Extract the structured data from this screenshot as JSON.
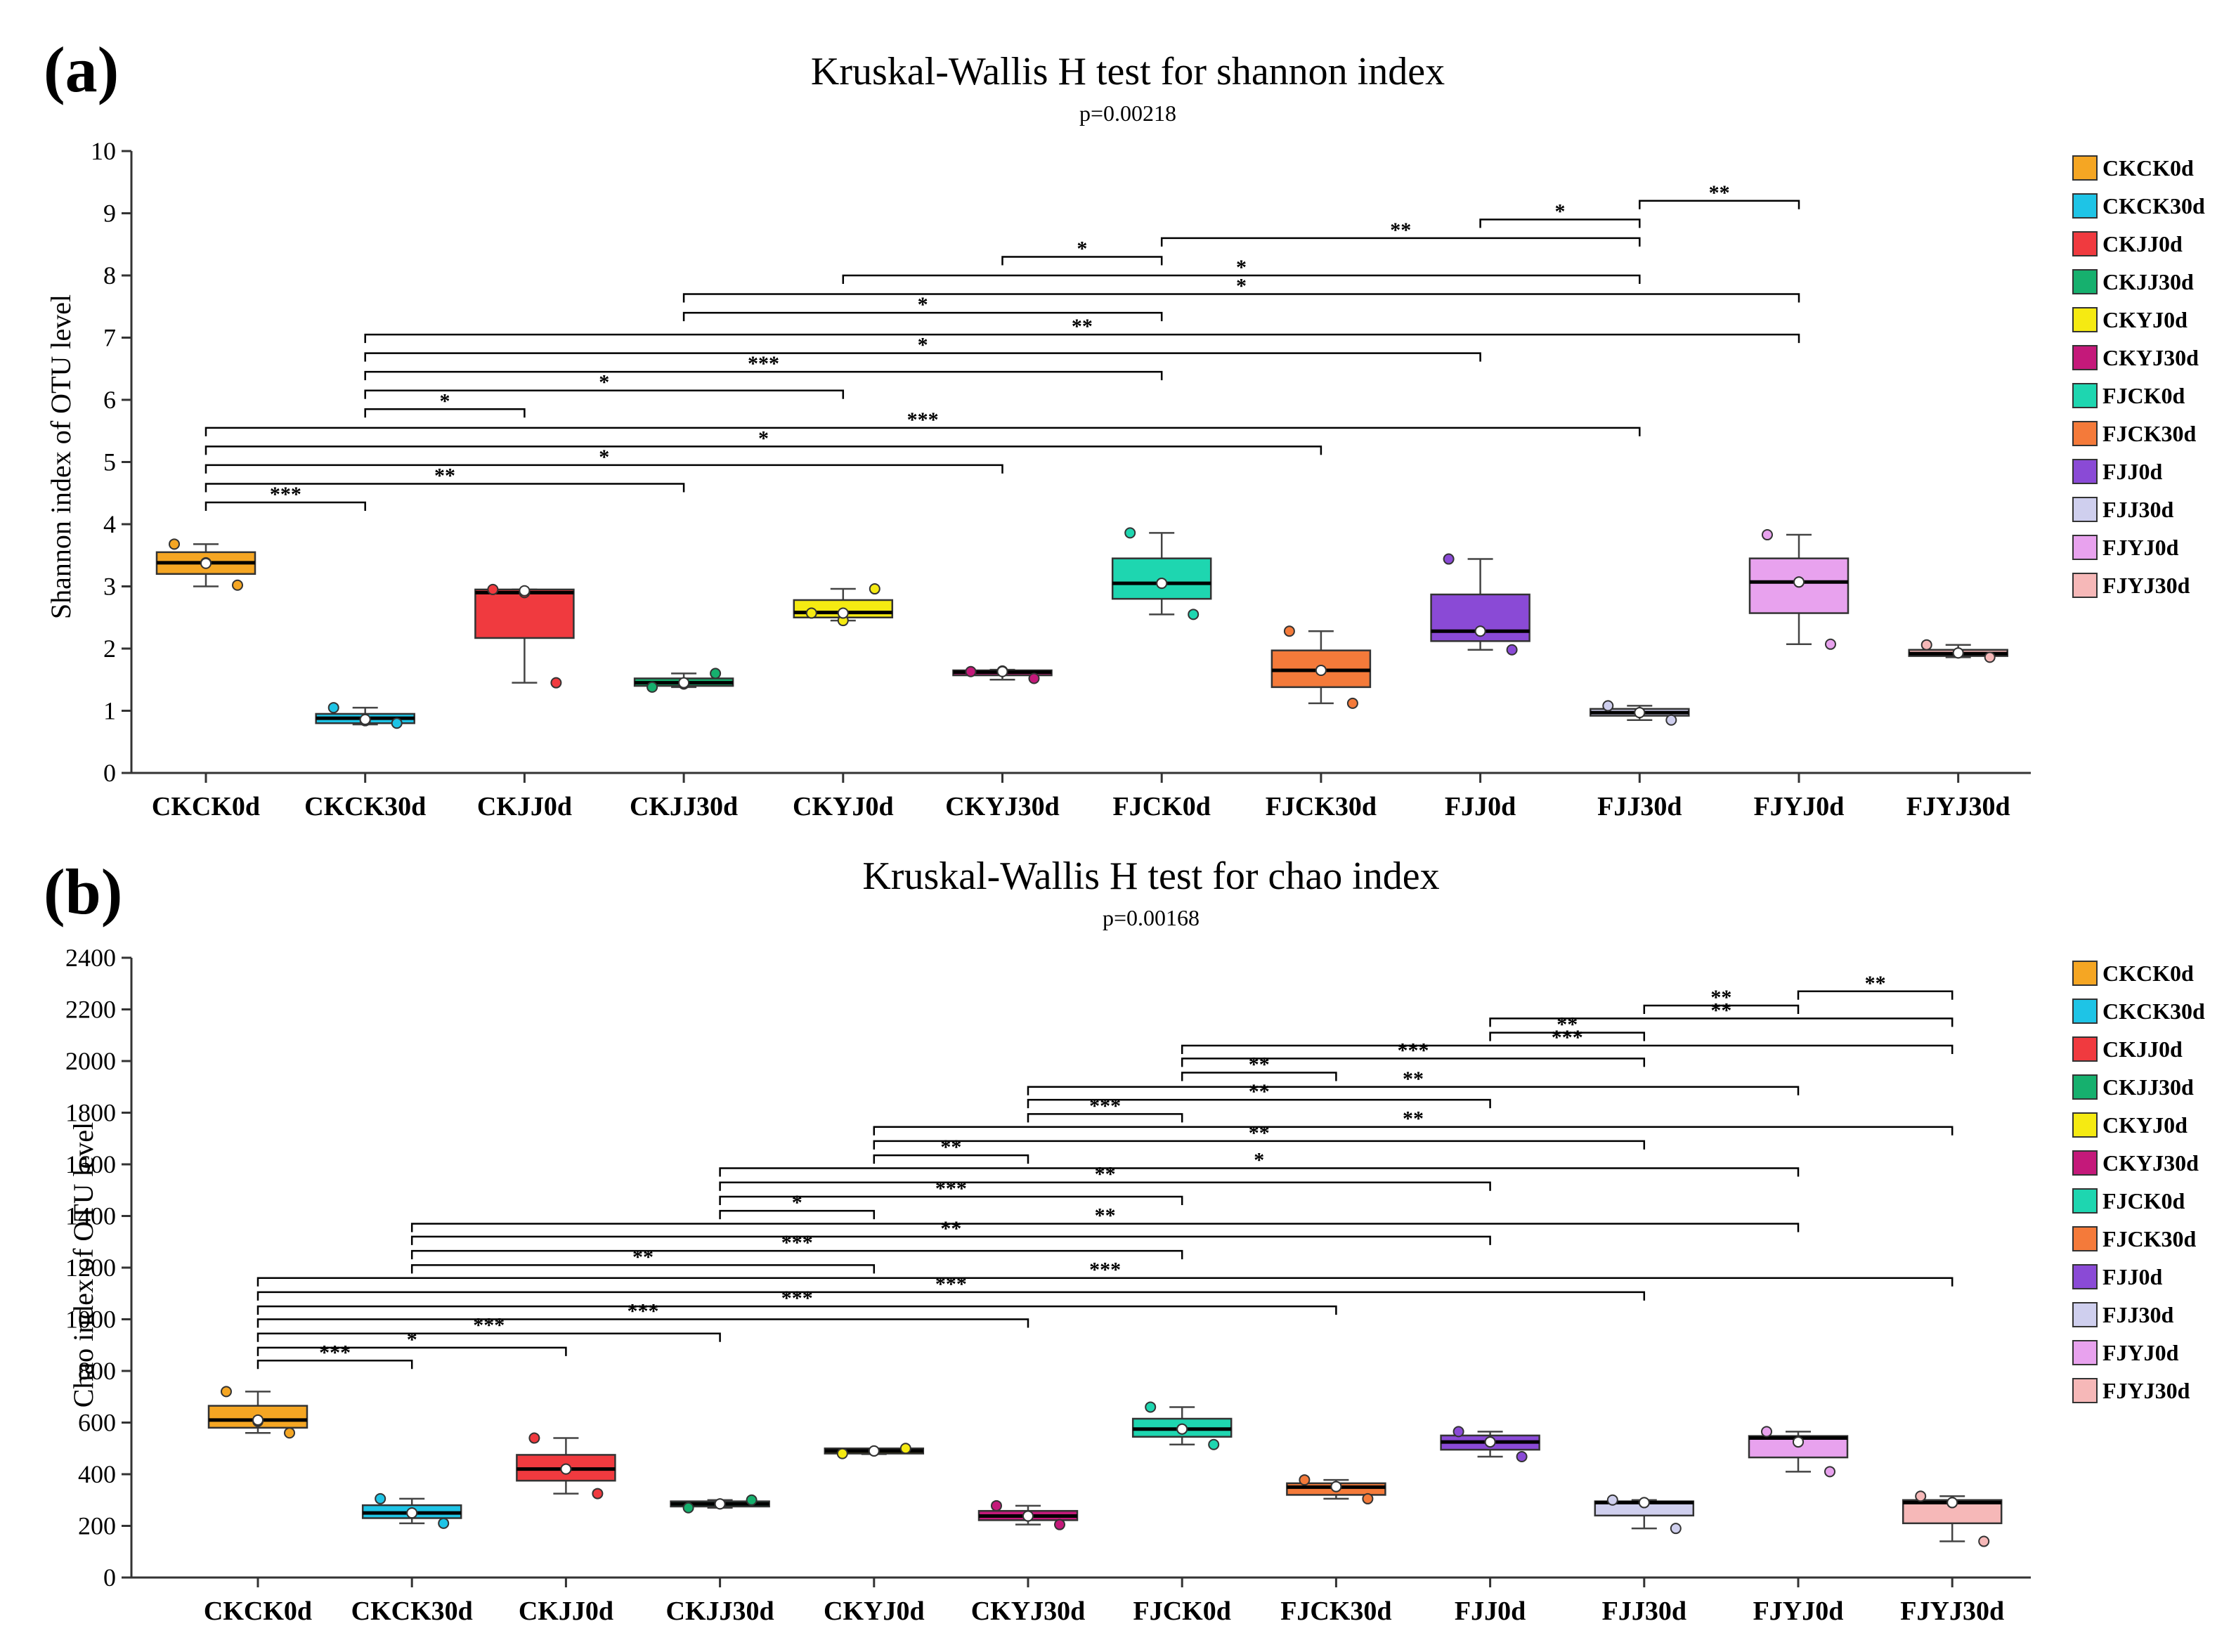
{
  "chart_data": [
    {
      "type": "box",
      "panel_label": "(a)",
      "title": "Kruskal-Wallis H test for shannon index",
      "p_value": "p=0.00218",
      "ylabel": "Shannon index of OTU level",
      "ylim": [
        0,
        10
      ],
      "yticks": [
        "0",
        "1",
        "2",
        "3",
        "4",
        "5",
        "6",
        "7",
        "8",
        "9",
        "10"
      ],
      "categories": [
        "CKCK0d",
        "CKCK30d",
        "CKJJ0d",
        "CKJJ30d",
        "CKYJ0d",
        "CKYJ30d",
        "FJCK0d",
        "FJCK30d",
        "FJJ0d",
        "FJJ30d",
        "FJYJ0d",
        "FJYJ30d"
      ],
      "boxes": [
        {
          "q1": 3.2,
          "median": 3.38,
          "q3": 3.55,
          "wlo": 3.0,
          "whi": 3.68,
          "mean": 3.37,
          "points": [
            3.68,
            3.38,
            3.02
          ]
        },
        {
          "q1": 0.8,
          "median": 0.88,
          "q3": 0.95,
          "wlo": 0.78,
          "whi": 1.05,
          "mean": 0.86,
          "points": [
            1.05,
            0.84,
            0.8
          ]
        },
        {
          "q1": 2.17,
          "median": 2.9,
          "q3": 2.95,
          "wlo": 1.45,
          "whi": 2.95,
          "mean": 2.93,
          "points": [
            2.95,
            2.9,
            1.45
          ]
        },
        {
          "q1": 1.4,
          "median": 1.45,
          "q3": 1.52,
          "wlo": 1.38,
          "whi": 1.6,
          "mean": 1.45,
          "points": [
            1.38,
            1.43,
            1.6
          ]
        },
        {
          "q1": 2.5,
          "median": 2.58,
          "q3": 2.78,
          "wlo": 2.45,
          "whi": 2.96,
          "mean": 2.57,
          "points": [
            2.57,
            2.45,
            2.96
          ]
        },
        {
          "q1": 1.57,
          "median": 1.62,
          "q3": 1.65,
          "wlo": 1.5,
          "whi": 1.66,
          "mean": 1.63,
          "points": [
            1.63,
            1.64,
            1.52
          ]
        },
        {
          "q1": 2.8,
          "median": 3.05,
          "q3": 3.45,
          "wlo": 2.55,
          "whi": 3.86,
          "mean": 3.05,
          "points": [
            3.86,
            3.05,
            2.55
          ]
        },
        {
          "q1": 1.38,
          "median": 1.65,
          "q3": 1.97,
          "wlo": 1.12,
          "whi": 2.28,
          "mean": 1.65,
          "points": [
            2.28,
            1.65,
            1.12
          ]
        },
        {
          "q1": 2.12,
          "median": 2.28,
          "q3": 2.87,
          "wlo": 1.98,
          "whi": 3.44,
          "mean": 2.28,
          "points": [
            3.44,
            2.28,
            1.98
          ]
        },
        {
          "q1": 0.92,
          "median": 0.97,
          "q3": 1.03,
          "wlo": 0.85,
          "whi": 1.08,
          "mean": 0.97,
          "points": [
            1.08,
            0.97,
            0.85
          ]
        },
        {
          "q1": 2.57,
          "median": 3.07,
          "q3": 3.45,
          "wlo": 2.07,
          "whi": 3.83,
          "mean": 3.07,
          "points": [
            3.83,
            3.07,
            2.07
          ]
        },
        {
          "q1": 1.88,
          "median": 1.92,
          "q3": 1.98,
          "wlo": 1.86,
          "whi": 2.06,
          "mean": 1.93,
          "points": [
            2.06,
            1.93,
            1.86
          ]
        }
      ],
      "comparisons": [
        {
          "from": 0,
          "to": 1,
          "y": 4.35,
          "sig": "***"
        },
        {
          "from": 0,
          "to": 3,
          "y": 4.65,
          "sig": "**"
        },
        {
          "from": 0,
          "to": 5,
          "y": 4.95,
          "sig": "*"
        },
        {
          "from": 0,
          "to": 7,
          "y": 5.25,
          "sig": "*"
        },
        {
          "from": 0,
          "to": 9,
          "y": 5.55,
          "sig": "***"
        },
        {
          "from": 1,
          "to": 2,
          "y": 5.85,
          "sig": "*"
        },
        {
          "from": 1,
          "to": 4,
          "y": 6.15,
          "sig": "*"
        },
        {
          "from": 1,
          "to": 6,
          "y": 6.45,
          "sig": "***"
        },
        {
          "from": 1,
          "to": 8,
          "y": 6.75,
          "sig": "*"
        },
        {
          "from": 1,
          "to": 10,
          "y": 7.05,
          "sig": "**"
        },
        {
          "from": 3,
          "to": 6,
          "y": 7.4,
          "sig": "*"
        },
        {
          "from": 3,
          "to": 10,
          "y": 7.7,
          "sig": "*"
        },
        {
          "from": 4,
          "to": 9,
          "y": 8.0,
          "sig": "*"
        },
        {
          "from": 5,
          "to": 6,
          "y": 8.3,
          "sig": "*"
        },
        {
          "from": 6,
          "to": 9,
          "y": 8.6,
          "sig": "**"
        },
        {
          "from": 8,
          "to": 9,
          "y": 8.9,
          "sig": "*"
        },
        {
          "from": 9,
          "to": 10,
          "y": 9.2,
          "sig": "**"
        }
      ]
    },
    {
      "type": "box",
      "panel_label": "(b)",
      "title": "Kruskal-Wallis H test for chao index",
      "p_value": "p=0.00168",
      "ylabel": "Chao index of OTU level",
      "ylim": [
        0,
        2400
      ],
      "yticks": [
        "0",
        "200",
        "400",
        "600",
        "800",
        "1000",
        "1200",
        "1400",
        "1600",
        "1800",
        "2000",
        "2200",
        "2400"
      ],
      "categories": [
        "CKCK0d",
        "CKCK30d",
        "CKJJ0d",
        "CKJJ30d",
        "CKYJ0d",
        "CKYJ30d",
        "FJCK0d",
        "FJCK30d",
        "FJJ0d",
        "FJJ30d",
        "FJYJ0d",
        "FJYJ30d"
      ],
      "boxes": [
        {
          "q1": 580,
          "median": 610,
          "q3": 665,
          "wlo": 560,
          "whi": 720,
          "mean": 610,
          "points": [
            720,
            605,
            560
          ]
        },
        {
          "q1": 230,
          "median": 250,
          "q3": 280,
          "wlo": 210,
          "whi": 305,
          "mean": 250,
          "points": [
            305,
            250,
            210
          ]
        },
        {
          "q1": 375,
          "median": 420,
          "q3": 475,
          "wlo": 325,
          "whi": 540,
          "mean": 420,
          "points": [
            540,
            420,
            325
          ]
        },
        {
          "q1": 275,
          "median": 285,
          "q3": 295,
          "wlo": 270,
          "whi": 300,
          "mean": 285,
          "points": [
            270,
            285,
            300
          ]
        },
        {
          "q1": 480,
          "median": 490,
          "q3": 500,
          "wlo": 478,
          "whi": 500,
          "mean": 490,
          "points": [
            480,
            490,
            500
          ]
        },
        {
          "q1": 222,
          "median": 238,
          "q3": 258,
          "wlo": 205,
          "whi": 278,
          "mean": 238,
          "points": [
            278,
            238,
            205
          ]
        },
        {
          "q1": 545,
          "median": 575,
          "q3": 615,
          "wlo": 515,
          "whi": 660,
          "mean": 575,
          "points": [
            660,
            575,
            515
          ]
        },
        {
          "q1": 320,
          "median": 350,
          "q3": 365,
          "wlo": 305,
          "whi": 378,
          "mean": 352,
          "points": [
            378,
            352,
            305
          ]
        },
        {
          "q1": 495,
          "median": 525,
          "q3": 550,
          "wlo": 468,
          "whi": 565,
          "mean": 525,
          "points": [
            565,
            525,
            468
          ]
        },
        {
          "q1": 240,
          "median": 290,
          "q3": 295,
          "wlo": 190,
          "whi": 300,
          "mean": 290,
          "points": [
            300,
            290,
            190
          ]
        },
        {
          "q1": 465,
          "median": 540,
          "q3": 548,
          "wlo": 410,
          "whi": 565,
          "mean": 525,
          "points": [
            565,
            525,
            410
          ]
        },
        {
          "q1": 210,
          "median": 290,
          "q3": 300,
          "wlo": 140,
          "whi": 315,
          "mean": 290,
          "points": [
            315,
            290,
            140
          ]
        }
      ],
      "comparisons": [
        {
          "from": 0,
          "to": 1,
          "y": 840,
          "sig": "***"
        },
        {
          "from": 0,
          "to": 2,
          "y": 890,
          "sig": "*"
        },
        {
          "from": 0,
          "to": 3,
          "y": 945,
          "sig": "***"
        },
        {
          "from": 0,
          "to": 5,
          "y": 1000,
          "sig": "***"
        },
        {
          "from": 0,
          "to": 7,
          "y": 1050,
          "sig": "***"
        },
        {
          "from": 0,
          "to": 9,
          "y": 1105,
          "sig": "***"
        },
        {
          "from": 0,
          "to": 11,
          "y": 1160,
          "sig": "***"
        },
        {
          "from": 1,
          "to": 4,
          "y": 1210,
          "sig": "**"
        },
        {
          "from": 1,
          "to": 6,
          "y": 1265,
          "sig": "***"
        },
        {
          "from": 1,
          "to": 8,
          "y": 1320,
          "sig": "**"
        },
        {
          "from": 1,
          "to": 10,
          "y": 1370,
          "sig": "**"
        },
        {
          "from": 3,
          "to": 4,
          "y": 1420,
          "sig": "*"
        },
        {
          "from": 3,
          "to": 6,
          "y": 1475,
          "sig": "***"
        },
        {
          "from": 3,
          "to": 8,
          "y": 1530,
          "sig": "**"
        },
        {
          "from": 3,
          "to": 10,
          "y": 1585,
          "sig": "*"
        },
        {
          "from": 4,
          "to": 5,
          "y": 1635,
          "sig": "**"
        },
        {
          "from": 4,
          "to": 9,
          "y": 1690,
          "sig": "**"
        },
        {
          "from": 4,
          "to": 11,
          "y": 1745,
          "sig": "**"
        },
        {
          "from": 5,
          "to": 6,
          "y": 1795,
          "sig": "***"
        },
        {
          "from": 5,
          "to": 8,
          "y": 1850,
          "sig": "**"
        },
        {
          "from": 5,
          "to": 10,
          "y": 1900,
          "sig": "**"
        },
        {
          "from": 6,
          "to": 7,
          "y": 1955,
          "sig": "**"
        },
        {
          "from": 6,
          "to": 9,
          "y": 2010,
          "sig": "***"
        },
        {
          "from": 6,
          "to": 11,
          "y": 2060,
          "sig": "***"
        },
        {
          "from": 8,
          "to": 9,
          "y": 2110,
          "sig": "**"
        },
        {
          "from": 8,
          "to": 11,
          "y": 2165,
          "sig": "**"
        },
        {
          "from": 9,
          "to": 10,
          "y": 2215,
          "sig": "**"
        },
        {
          "from": 10,
          "to": 11,
          "y": 2270,
          "sig": "**"
        }
      ]
    }
  ],
  "legend": {
    "items": [
      {
        "label": "CKCK0d",
        "color": "#f5a623"
      },
      {
        "label": "CKCK30d",
        "color": "#1ec4e6"
      },
      {
        "label": "CKJJ0d",
        "color": "#f03a3f"
      },
      {
        "label": "CKJJ30d",
        "color": "#16b06e"
      },
      {
        "label": "CKYJ0d",
        "color": "#f5ea12"
      },
      {
        "label": "CKYJ30d",
        "color": "#c4197a"
      },
      {
        "label": "FJCK0d",
        "color": "#1ed6b0"
      },
      {
        "label": "FJCK30d",
        "color": "#f47a3a"
      },
      {
        "label": "FJJ0d",
        "color": "#8a4ad6"
      },
      {
        "label": "FJJ30d",
        "color": "#cfcfee"
      },
      {
        "label": "FJYJ0d",
        "color": "#e8a2ee"
      },
      {
        "label": "FJYJ30d",
        "color": "#f6b8b8"
      }
    ]
  }
}
